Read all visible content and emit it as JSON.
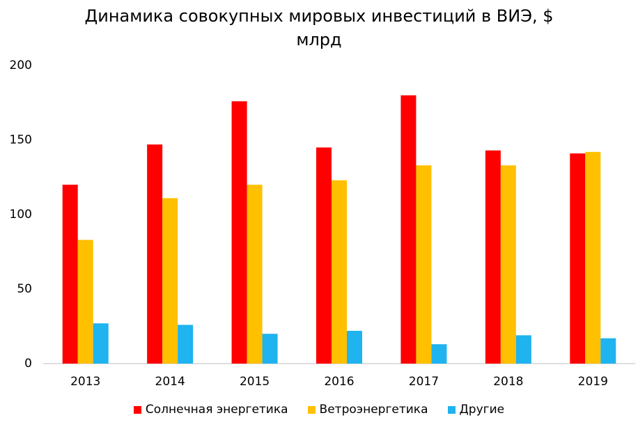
{
  "chart_data": {
    "type": "bar",
    "title": "Динамика совокупных мировых инвестиций в ВИЭ, $ млрд",
    "categories": [
      "2013",
      "2014",
      "2015",
      "2016",
      "2017",
      "2018",
      "2019"
    ],
    "series": [
      {
        "name": "Солнечная энергетика",
        "color": "#ff0000",
        "values": [
          120,
          147,
          176,
          145,
          180,
          143,
          141
        ]
      },
      {
        "name": "Ветроэнергетика",
        "color": "#ffc000",
        "values": [
          83,
          111,
          120,
          123,
          133,
          133,
          142
        ]
      },
      {
        "name": "Другие",
        "color": "#1fb3f0",
        "values": [
          27,
          26,
          20,
          22,
          13,
          19,
          17
        ]
      }
    ],
    "ylim": [
      0,
      200
    ],
    "yticks": [
      0,
      50,
      100,
      150,
      200
    ],
    "grid": false,
    "legend": "bottom"
  }
}
